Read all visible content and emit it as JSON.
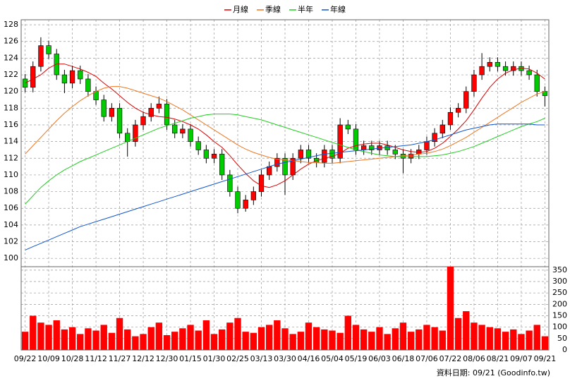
{
  "chart_data": {
    "type": "candlestick",
    "categories": [
      "09/22",
      null,
      null,
      "10/09",
      null,
      null,
      "10/28",
      null,
      null,
      "11/12",
      null,
      null,
      "11/27",
      null,
      null,
      "12/12",
      null,
      null,
      "12/30",
      null,
      null,
      "01/15",
      null,
      null,
      "01/30",
      null,
      null,
      "02/25",
      null,
      null,
      "03/13",
      null,
      null,
      "03/30",
      null,
      null,
      "04/16",
      null,
      null,
      "05/04",
      null,
      null,
      "05/19",
      null,
      null,
      "06/03",
      null,
      null,
      "06/18",
      null,
      null,
      "07/06",
      null,
      null,
      "07/22",
      null,
      null,
      "08/06",
      null,
      null,
      "08/21",
      null,
      null,
      "09/07",
      null,
      null,
      "09/21"
    ],
    "open": [
      121.5,
      120.5,
      123,
      125.5,
      124.5,
      122,
      121,
      122.5,
      121.5,
      120,
      119,
      117,
      118,
      115,
      114,
      116,
      117,
      118,
      118.5,
      116,
      115,
      115.5,
      114,
      113,
      112,
      112.5,
      110,
      108,
      106,
      107,
      108,
      110,
      111,
      112,
      110,
      112,
      113,
      112,
      111.5,
      113,
      112,
      116,
      115.5,
      113,
      113.5,
      113,
      113.5,
      113,
      112.5,
      112,
      112.5,
      113,
      114,
      115,
      116,
      117.5,
      118,
      120,
      122,
      123,
      123.5,
      123,
      122.5,
      123,
      122.5,
      122,
      120
    ],
    "high": [
      122.1,
      123.6,
      126.5,
      126.1,
      125.1,
      122.6,
      123.1,
      123.1,
      122.1,
      120.6,
      119.6,
      118.6,
      118.6,
      115.6,
      116.6,
      117.6,
      118.6,
      119.4,
      119.1,
      116.6,
      116.1,
      116.1,
      114.6,
      113.6,
      113.1,
      113.1,
      110.6,
      108.6,
      107.6,
      108.6,
      110.6,
      111.6,
      112.6,
      112.6,
      112.6,
      113.6,
      113.6,
      112.6,
      113.6,
      113.6,
      116.8,
      116.6,
      116.1,
      114.1,
      114.1,
      114.1,
      114.1,
      113.6,
      113.1,
      113.1,
      113.6,
      114.6,
      115.6,
      116.6,
      118.1,
      118.6,
      120.6,
      122.6,
      124.6,
      124.1,
      124.1,
      123.6,
      123.6,
      123.6,
      123.1,
      122.6,
      120.6
    ],
    "low": [
      119.9,
      119.9,
      122.4,
      123.9,
      121.4,
      119.8,
      120.4,
      120.9,
      119.4,
      118.4,
      116.4,
      116.4,
      114.4,
      112.2,
      113.4,
      115.4,
      116.4,
      117.4,
      115.4,
      114.4,
      114.4,
      113.4,
      112.4,
      111.4,
      111.4,
      109.4,
      107.4,
      105.4,
      105.6,
      106.4,
      107.4,
      109.4,
      110.4,
      107.6,
      109.4,
      111.4,
      111.4,
      110.9,
      110.9,
      111.4,
      111.4,
      114.9,
      112.4,
      112.4,
      112.4,
      112.4,
      112.4,
      111.9,
      110.2,
      111.4,
      111.9,
      112.4,
      113.4,
      114.4,
      115.4,
      116.9,
      117.4,
      119.4,
      121.4,
      122.4,
      122.4,
      121.9,
      121.9,
      121.9,
      121.4,
      119.4,
      118.2
    ],
    "close": [
      120.5,
      123,
      125.5,
      124.5,
      122,
      121,
      122.5,
      121.5,
      120,
      119,
      117,
      118,
      115,
      114,
      116,
      117,
      118,
      118.5,
      116,
      115,
      115.5,
      114,
      113,
      112,
      112.5,
      110,
      108,
      106,
      107,
      108,
      110,
      111,
      112,
      110,
      112,
      113,
      112,
      111.5,
      113,
      112,
      116,
      115.5,
      113,
      113.5,
      113,
      113.5,
      113,
      112.5,
      112,
      112.5,
      113,
      114,
      115,
      116,
      117.5,
      118,
      120,
      122,
      123,
      123.5,
      123,
      122.5,
      123,
      122.5,
      122,
      120,
      119.5
    ],
    "up_color": "#ff0000",
    "down_color": "#00cc00",
    "series": [
      {
        "name": "月線",
        "color": "#dd0000",
        "values": [
          121,
          121.5,
          122,
          122.8,
          123.3,
          123.3,
          123,
          122.7,
          122.3,
          121.8,
          121,
          120.3,
          119.5,
          118.7,
          118,
          117.5,
          117.2,
          117,
          116.9,
          116.7,
          116.4,
          116,
          115.5,
          114.8,
          114,
          113.3,
          112.3,
          111.2,
          110.2,
          109.3,
          108.7,
          108.5,
          108.8,
          109.3,
          110,
          110.7,
          111.3,
          111.7,
          112,
          112.2,
          112.6,
          113.2,
          113.5,
          113.7,
          113.8,
          113.8,
          113.6,
          113.3,
          113,
          112.8,
          112.7,
          112.8,
          113.2,
          113.8,
          114.6,
          115.5,
          116.5,
          117.8,
          119.2,
          120.5,
          121.5,
          122.2,
          122.6,
          122.8,
          122.7,
          122.2,
          121.5
        ]
      },
      {
        "name": "季線",
        "color": "#ee7722",
        "values": [
          112.5,
          113.5,
          114.5,
          115.5,
          116.5,
          117.4,
          118.2,
          118.9,
          119.5,
          120,
          120.4,
          120.6,
          120.6,
          120.4,
          120.1,
          119.8,
          119.5,
          119.2,
          118.8,
          118.3,
          117.8,
          117.2,
          116.6,
          116,
          115.4,
          114.8,
          114.2,
          113.6,
          113.1,
          112.7,
          112.4,
          112.1,
          111.9,
          111.8,
          111.7,
          111.6,
          111.5,
          111.5,
          111.4,
          111.4,
          111.5,
          111.6,
          111.7,
          111.8,
          111.9,
          112,
          112.1,
          112.2,
          112.3,
          112.4,
          112.5,
          112.6,
          112.8,
          113.1,
          113.5,
          114,
          114.5,
          115.1,
          115.7,
          116.3,
          116.9,
          117.5,
          118.1,
          118.7,
          119.2,
          119.7,
          120
        ]
      },
      {
        "name": "半年",
        "color": "#22cc22",
        "values": [
          106.5,
          107.5,
          108.5,
          109.3,
          110,
          110.6,
          111.1,
          111.6,
          112,
          112.4,
          112.8,
          113.2,
          113.6,
          114,
          114.4,
          114.8,
          115.2,
          115.6,
          115.9,
          116.2,
          116.5,
          116.8,
          117,
          117.2,
          117.3,
          117.3,
          117.3,
          117.2,
          117,
          116.8,
          116.6,
          116.3,
          116,
          115.7,
          115.4,
          115.1,
          114.8,
          114.5,
          114.2,
          113.9,
          113.6,
          113.3,
          113,
          112.8,
          112.6,
          112.4,
          112.3,
          112.2,
          112.2,
          112.2,
          112.2,
          112.2,
          112.3,
          112.4,
          112.6,
          112.8,
          113.1,
          113.4,
          113.8,
          114.2,
          114.6,
          115,
          115.4,
          115.8,
          116.1,
          116.4,
          116.8
        ]
      },
      {
        "name": "年線",
        "color": "#1155cc",
        "values": [
          101,
          101.4,
          101.8,
          102.2,
          102.6,
          103,
          103.4,
          103.8,
          104.1,
          104.4,
          104.7,
          105,
          105.3,
          105.6,
          105.9,
          106.2,
          106.5,
          106.8,
          107.1,
          107.4,
          107.7,
          108,
          108.3,
          108.6,
          108.9,
          109.2,
          109.5,
          109.8,
          110.1,
          110.4,
          110.7,
          111,
          111.3,
          111.5,
          111.7,
          111.9,
          112.1,
          112.3,
          112.5,
          112.6,
          112.7,
          112.8,
          112.9,
          113,
          113.1,
          113.2,
          113.3,
          113.4,
          113.5,
          113.6,
          113.8,
          114,
          114.2,
          114.5,
          114.8,
          115.1,
          115.4,
          115.6,
          115.8,
          116,
          116.1,
          116.1,
          116.1,
          116.1,
          116.1,
          116,
          116
        ]
      }
    ],
    "ylim": [
      99,
      128.6
    ],
    "yticks": [
      100,
      102,
      104,
      106,
      108,
      110,
      112,
      114,
      116,
      118,
      120,
      122,
      124,
      126,
      128
    ],
    "volume": {
      "color": "#ff0000",
      "values": [
        80,
        150,
        120,
        110,
        130,
        90,
        100,
        70,
        95,
        85,
        110,
        75,
        140,
        90,
        60,
        70,
        100,
        120,
        65,
        80,
        95,
        110,
        85,
        130,
        70,
        90,
        120,
        140,
        80,
        75,
        100,
        110,
        130,
        95,
        70,
        80,
        120,
        100,
        90,
        85,
        75,
        150,
        110,
        90,
        80,
        100,
        70,
        95,
        120,
        80,
        90,
        110,
        100,
        85,
        365,
        140,
        170,
        120,
        110,
        100,
        95,
        80,
        90,
        70,
        85,
        110,
        60
      ],
      "ylim": [
        0,
        365
      ],
      "yticks": [
        0,
        50,
        100,
        150,
        200,
        250,
        300,
        350
      ]
    },
    "grid": true,
    "footer": "資料日期: 09/21  (Goodinfo.tw)"
  }
}
